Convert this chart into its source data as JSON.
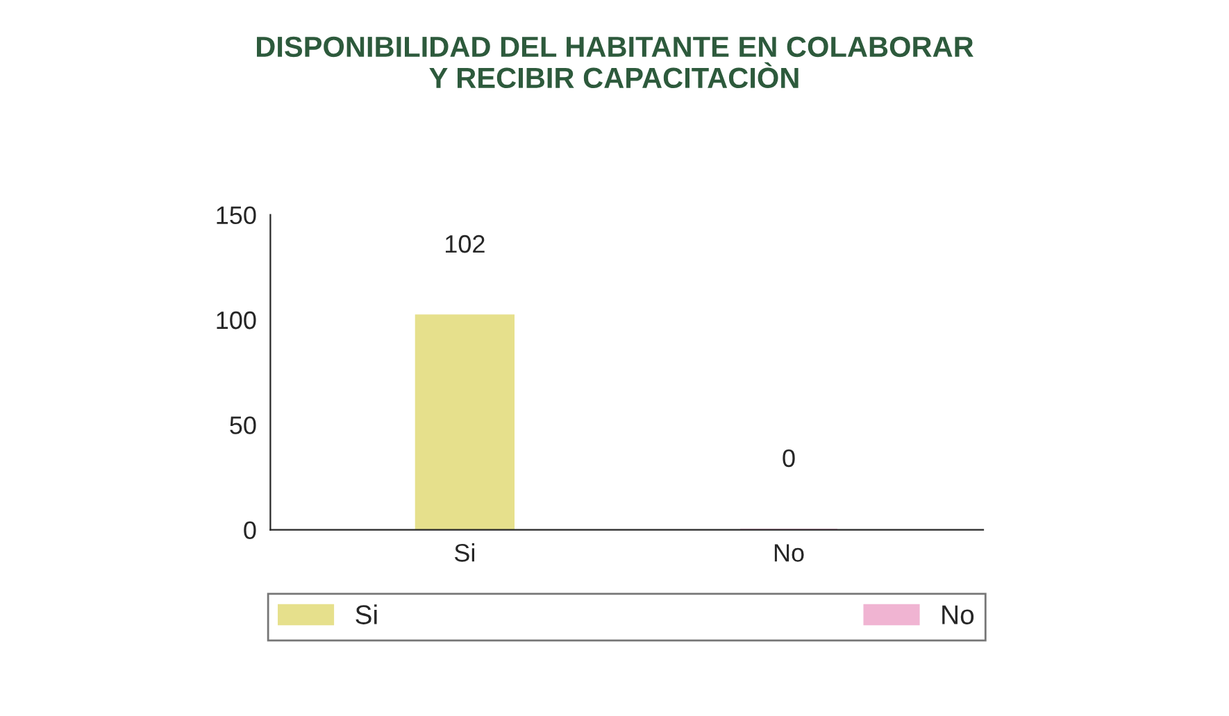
{
  "chart_data": {
    "type": "bar",
    "title": "DISPONIBILIDAD DEL HABITANTE EN COLABORAR\nY RECIBIR CAPACITACIÒN",
    "categories": [
      "Si",
      "No"
    ],
    "series": [
      {
        "name": "Si",
        "color": "#e6e08c",
        "values": [
          102,
          null
        ]
      },
      {
        "name": "No",
        "color": "#f0b4d2",
        "values": [
          null,
          0
        ]
      }
    ],
    "ylim": [
      0,
      150
    ],
    "yticks": [
      0,
      50,
      100,
      150
    ],
    "data_labels": true,
    "legend": "bottom",
    "grid": false
  }
}
